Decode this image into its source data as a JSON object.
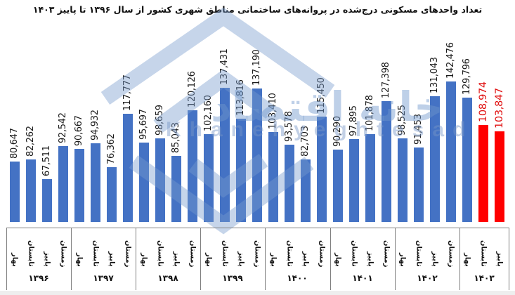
{
  "title": "تعداد واحدهای مسکونی درج‌شده در پروانه‌های ساختمانی مناطق شهری کشور از سال ۱۳۹۶ تا پاییز ۱۴۰۳",
  "watermark": {
    "persian_text": "خانه اقتصاد",
    "latin_text": "Khanehyeghtesad",
    "icon": "house-diamond-logo-icon"
  },
  "colors": {
    "bar_default": "#4472c4",
    "bar_highlight": "#ff0000",
    "label_default": "#1a1a1a",
    "label_highlight": "#e01010",
    "watermark": "#8fb0dc"
  },
  "chart_data": {
    "type": "bar",
    "title": "تعداد واحدهای مسکونی درج‌شده در پروانه‌های ساختمانی مناطق شهری کشور از سال ۱۳۹۶ تا پاییز ۱۴۰۳",
    "xlabel": "",
    "ylabel": "",
    "grid": false,
    "legend": "none",
    "ylim": [
      34370,
      150000
    ],
    "season_labels": [
      "بهار",
      "تابستان",
      "پاییز",
      "زمستان"
    ],
    "groups": [
      {
        "year": "۱۳۹۶",
        "values": [
          80647,
          82262,
          67511,
          92542
        ]
      },
      {
        "year": "۱۳۹۷",
        "values": [
          90667,
          94932,
          76362,
          117777
        ]
      },
      {
        "year": "۱۳۹۸",
        "values": [
          95697,
          98659,
          85043,
          120126
        ]
      },
      {
        "year": "۱۳۹۹",
        "values": [
          102160,
          137431,
          113816,
          137190
        ]
      },
      {
        "year": "۱۴۰۰",
        "values": [
          103410,
          93578,
          82703,
          115450
        ]
      },
      {
        "year": "۱۴۰۱",
        "values": [
          90290,
          97895,
          101878,
          127398
        ]
      },
      {
        "year": "۱۴۰۲",
        "values": [
          98525,
          91453,
          131043,
          142476
        ]
      },
      {
        "year": "۱۴۰۳",
        "values": [
          129796,
          108974,
          103847
        ],
        "highlight_indices": [
          1,
          2
        ]
      }
    ],
    "value_labels": [
      "80,647",
      "82,262",
      "67,511",
      "92,542",
      "90,667",
      "94,932",
      "76,362",
      "117,777",
      "95,697",
      "98,659",
      "85,043",
      "120,126",
      "102,160",
      "137,431",
      "113,816",
      "137,190",
      "103,410",
      "93,578",
      "82,703",
      "115,450",
      "90,290",
      "97,895",
      "101,878",
      "127,398",
      "98,525",
      "91,453",
      "131,043",
      "142,476",
      "129,796",
      "108,974",
      "103,847"
    ]
  }
}
